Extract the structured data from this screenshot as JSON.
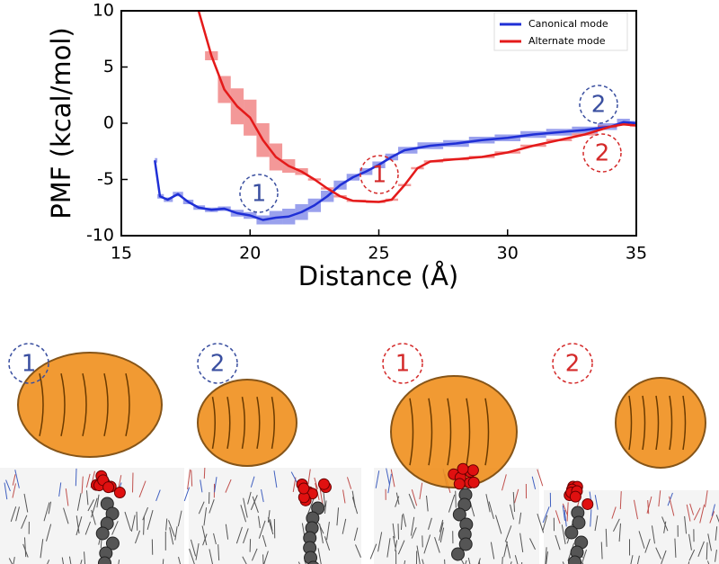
{
  "chart_data": {
    "type": "line",
    "xlabel": "Distance (Å)",
    "ylabel": "PMF (kcal/mol)",
    "xlim": [
      15,
      35
    ],
    "ylim": [
      -10,
      10
    ],
    "xticks": [
      15,
      20,
      25,
      30,
      35
    ],
    "yticks": [
      -10,
      -5,
      0,
      5,
      10
    ],
    "legend": "upper right",
    "series": [
      {
        "name": "Canonical mode",
        "color": "#1f2fd6",
        "x": [
          16.3,
          16.5,
          16.8,
          17.2,
          17.6,
          18,
          18.5,
          19,
          19.5,
          20,
          20.5,
          21,
          21.5,
          22,
          22.5,
          23,
          23.5,
          24,
          24.5,
          25,
          25.5,
          26,
          27,
          28,
          29,
          30,
          31,
          32,
          33,
          34,
          34.5,
          35
        ],
        "values": [
          -3.3,
          -6.5,
          -6.8,
          -6.3,
          -7.0,
          -7.5,
          -7.7,
          -7.6,
          -8.0,
          -8.2,
          -8.6,
          -8.4,
          -8.3,
          -7.9,
          -7.3,
          -6.5,
          -5.5,
          -4.8,
          -4.3,
          -3.7,
          -3.0,
          -2.4,
          -2.0,
          -1.8,
          -1.5,
          -1.3,
          -1.0,
          -0.8,
          -0.6,
          -0.3,
          0.1,
          0
        ],
        "errors": [
          0.2,
          0.2,
          0.2,
          0.2,
          0.2,
          0.2,
          0.2,
          0.2,
          0.3,
          0.3,
          0.4,
          0.6,
          0.7,
          0.7,
          0.6,
          0.5,
          0.4,
          0.3,
          0.3,
          0.3,
          0.3,
          0.3,
          0.3,
          0.3,
          0.3,
          0.3,
          0.3,
          0.3,
          0.3,
          0.3,
          0.3,
          0.2
        ]
      },
      {
        "name": "Alternate mode",
        "color": "#e41a1a",
        "x": [
          18,
          18.5,
          19,
          19.5,
          20,
          20.5,
          21,
          21.5,
          22,
          22.5,
          23,
          23.5,
          24,
          25,
          25.5,
          26,
          26.5,
          27,
          28,
          29,
          30,
          31,
          32,
          33,
          34,
          34.5,
          35
        ],
        "values": [
          10,
          6,
          3,
          1.5,
          0.5,
          -1.5,
          -3.0,
          -3.8,
          -4.3,
          -5.0,
          -5.8,
          -6.5,
          -6.9,
          -7.0,
          -6.8,
          -5.5,
          -4.0,
          -3.4,
          -3.2,
          -3.0,
          -2.6,
          -2.0,
          -1.5,
          -1.0,
          -0.3,
          -0.1,
          -0.2
        ],
        "errors": [
          0.1,
          0.4,
          1.2,
          1.6,
          1.6,
          1.5,
          1.2,
          0.6,
          0.3,
          0.1,
          0.1,
          0.1,
          0.1,
          0.1,
          0.1,
          0.1,
          0.1,
          0.1,
          0.1,
          0.1,
          0.1,
          0.1,
          0.1,
          0.1,
          0.1,
          0.1,
          0.1
        ]
      }
    ],
    "annotations": [
      {
        "text": "1",
        "color": "#3a4fa0"
      },
      {
        "text": "2",
        "color": "#3a4fa0"
      },
      {
        "text": "1",
        "color": "#d42a2a"
      },
      {
        "text": "2",
        "color": "#d42a2a"
      }
    ]
  },
  "panels": [
    {
      "label": "1",
      "color": "#3a4fa0"
    },
    {
      "label": "2",
      "color": "#3a4fa0"
    },
    {
      "label": "1",
      "color": "#d42a2a"
    },
    {
      "label": "2",
      "color": "#d42a2a"
    }
  ]
}
